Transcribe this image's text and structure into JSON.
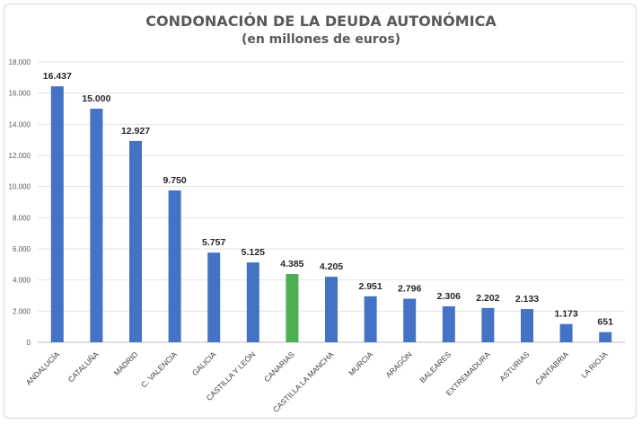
{
  "chart_data": {
    "type": "bar",
    "title": "CONDONACIÓN DE LA DEUDA AUTONÓMICA",
    "subtitle": "(en millones de euros)",
    "xlabel": "",
    "ylabel": "",
    "ylim": [
      0,
      18000
    ],
    "yticks": [
      0,
      2000,
      4000,
      6000,
      8000,
      10000,
      12000,
      14000,
      16000,
      18000
    ],
    "ytick_labels": [
      "0",
      "2.000",
      "4.000",
      "6.000",
      "8.000",
      "10.000",
      "12.000",
      "14.000",
      "16.000",
      "18.000"
    ],
    "grid": true,
    "categories": [
      "ANDALUCÍA",
      "CATALUÑA",
      "MADRID",
      "C. VALENCIA",
      "GALICIA",
      "CASTILLA Y LEÓN",
      "CANARIAS",
      "CASTILLA LA MANCHA",
      "MURCIA",
      "ARAGÓN",
      "BALEARES",
      "EXTREMADURA",
      "ASTURIAS",
      "CANTABRIA",
      "LA RIOJA"
    ],
    "values": [
      16437,
      15000,
      12927,
      9750,
      5757,
      5125,
      4385,
      4205,
      2951,
      2796,
      2306,
      2202,
      2133,
      1173,
      651
    ],
    "value_labels": [
      "16.437",
      "15.000",
      "12.927",
      "9.750",
      "5.757",
      "5.125",
      "4.385",
      "4.205",
      "2.951",
      "2.796",
      "2.306",
      "2.202",
      "2.133",
      "1.173",
      "651"
    ],
    "colors": {
      "default": "#4472c4",
      "highlight": "#4caf50"
    },
    "highlight_index": 6
  }
}
